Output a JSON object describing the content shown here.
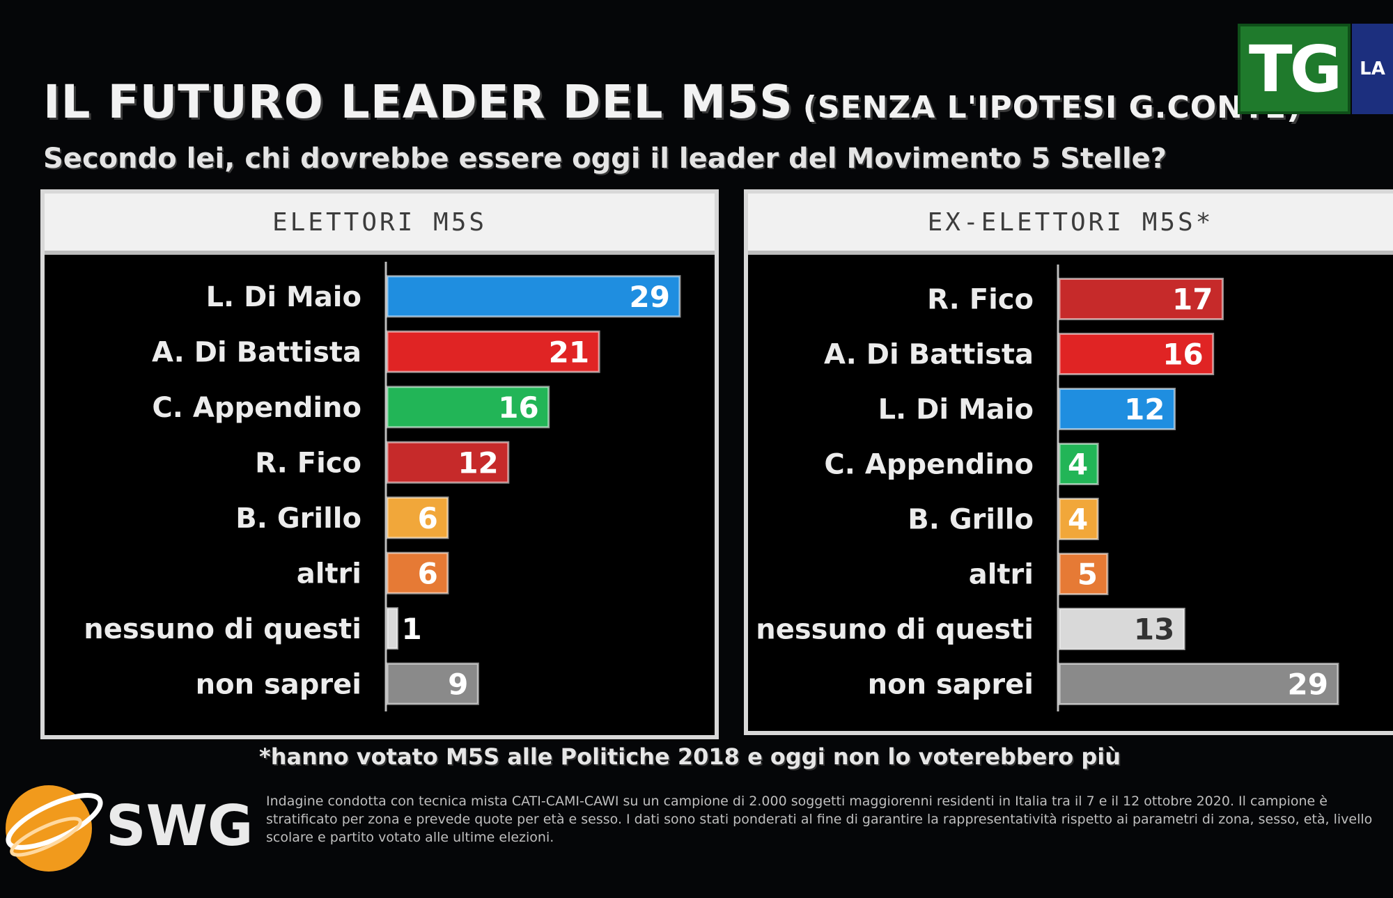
{
  "header": {
    "title": "IL FUTURO LEADER DEL M5S",
    "title_note": "(SENZA L'IPOTESI G.CONTE)",
    "subtitle": "Secondo lei, chi dovrebbe essere oggi il leader del Movimento 5 Stelle?"
  },
  "broadcaster": {
    "logo_text": "TG",
    "logo_side_text": "LA"
  },
  "footer": {
    "footnote": "*hanno votato M5S alle Politiche 2018 e oggi non lo voterebbero più",
    "brand": "SWG",
    "methodology": "Indagine condotta con tecnica mista CATI-CAMI-CAWI su un campione di 2.000 soggetti maggiorenni residenti in Italia tra il 7 e il 12 ottobre 2020. Il campione è stratificato per zona e prevede quote per età e sesso. I dati sono stati ponderati al fine di garantire la rappresentatività rispetto ai parametri di zona, sesso, età, livello scolare e partito votato alle ultime elezioni."
  },
  "colors": {
    "di_maio": "#1f8ee0",
    "di_battista": "#e02424",
    "appendino": "#22b557",
    "fico": "#c62a2a",
    "grillo": "#f1a73a",
    "altri": "#e67a35",
    "nessuno": "#d9d9d9",
    "non_saprei": "#8a8a8a"
  },
  "chart_data": [
    {
      "type": "bar",
      "orientation": "horizontal",
      "title": "ELETTORI M5S",
      "categories": [
        "L. Di Maio",
        "A. Di Battista",
        "C. Appendino",
        "R. Fico",
        "B. Grillo",
        "altri",
        "nessuno di questi",
        "non saprei"
      ],
      "values": [
        29,
        21,
        16,
        12,
        6,
        6,
        1,
        9
      ],
      "bar_colors": [
        "#1f8ee0",
        "#e02424",
        "#22b557",
        "#c62a2a",
        "#f1a73a",
        "#e67a35",
        "#d9d9d9",
        "#8a8a8a"
      ],
      "label_colors": [
        "#ffffff",
        "#ffffff",
        "#ffffff",
        "#ffffff",
        "#ffffff",
        "#ffffff",
        "#ffffff",
        "#ffffff"
      ],
      "xlim": [
        0,
        29
      ]
    },
    {
      "type": "bar",
      "orientation": "horizontal",
      "title": "EX-ELETTORI M5S*",
      "categories": [
        "R. Fico",
        "A. Di Battista",
        "L. Di Maio",
        "C. Appendino",
        "B. Grillo",
        "altri",
        "nessuno di questi",
        "non saprei"
      ],
      "values": [
        17,
        16,
        12,
        4,
        4,
        5,
        13,
        29
      ],
      "bar_colors": [
        "#c62a2a",
        "#e02424",
        "#1f8ee0",
        "#22b557",
        "#f1a73a",
        "#e67a35",
        "#d9d9d9",
        "#8a8a8a"
      ],
      "label_colors": [
        "#ffffff",
        "#ffffff",
        "#ffffff",
        "#ffffff",
        "#ffffff",
        "#ffffff",
        "#333333",
        "#ffffff"
      ],
      "xlim": [
        0,
        29
      ]
    }
  ]
}
